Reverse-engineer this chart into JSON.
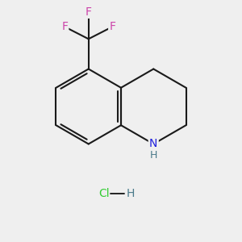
{
  "background_color": "#efefef",
  "bond_color": "#1a1a1a",
  "N_color": "#2020dd",
  "F_color": "#cc44aa",
  "Cl_color": "#33cc33",
  "H_color": "#4a7a8a",
  "bond_width": 1.5,
  "figsize": [
    3.0,
    3.0
  ],
  "dpi": 100,
  "xlim": [
    0,
    10
  ],
  "ylim": [
    0,
    10
  ]
}
